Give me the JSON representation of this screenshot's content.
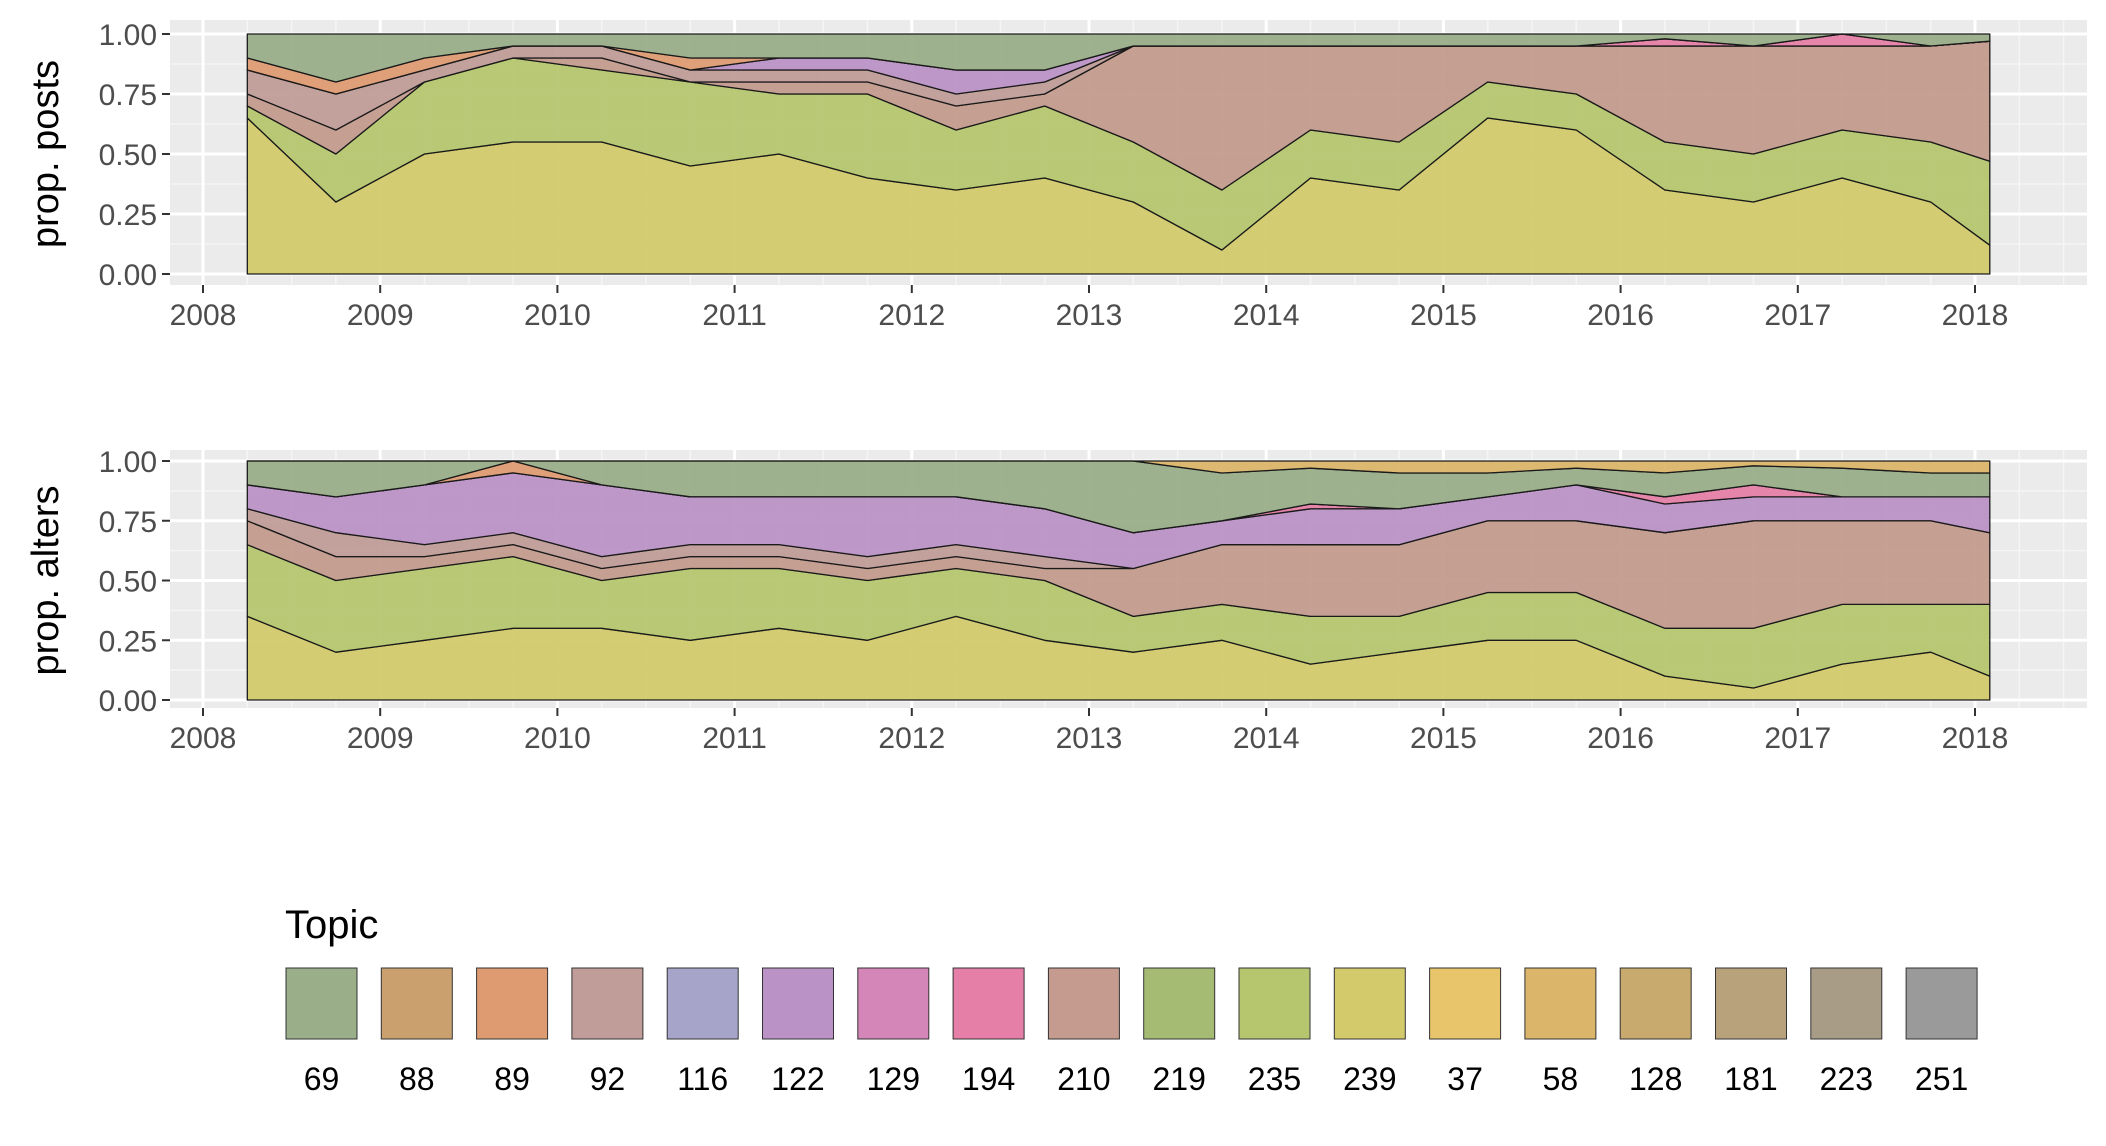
{
  "chart_data": [
    {
      "type": "area",
      "stacked": true,
      "ylabel": "prop. posts",
      "xlim": [
        "2008-01",
        "2018-06"
      ],
      "ylim": [
        0,
        1
      ],
      "x_ticks": [
        "2008",
        "2009",
        "2010",
        "2011",
        "2012",
        "2013",
        "2014",
        "2015",
        "2016",
        "2017",
        "2018"
      ],
      "y_ticks": [
        "0.00",
        "0.25",
        "0.50",
        "0.75",
        "1.00"
      ],
      "x": [
        "2008-04",
        "2008-10",
        "2009-04",
        "2009-10",
        "2010-04",
        "2010-10",
        "2011-04",
        "2011-10",
        "2012-04",
        "2012-10",
        "2013-04",
        "2013-10",
        "2014-04",
        "2014-10",
        "2015-04",
        "2015-10",
        "2016-04",
        "2016-10",
        "2017-04",
        "2017-10",
        "2018-02"
      ],
      "series": [
        {
          "topic": "239",
          "values": [
            0.65,
            0.3,
            0.5,
            0.55,
            0.55,
            0.45,
            0.5,
            0.4,
            0.35,
            0.4,
            0.3,
            0.1,
            0.4,
            0.35,
            0.65,
            0.6,
            0.35,
            0.3,
            0.4,
            0.3,
            0.12
          ]
        },
        {
          "topic": "235",
          "values": [
            0.05,
            0.2,
            0.3,
            0.35,
            0.3,
            0.35,
            0.25,
            0.35,
            0.25,
            0.3,
            0.25,
            0.25,
            0.2,
            0.2,
            0.15,
            0.15,
            0.2,
            0.2,
            0.2,
            0.25,
            0.35
          ]
        },
        {
          "topic": "210",
          "values": [
            0.05,
            0.1,
            0.0,
            0.0,
            0.05,
            0.0,
            0.05,
            0.05,
            0.1,
            0.05,
            0.4,
            0.6,
            0.35,
            0.4,
            0.15,
            0.2,
            0.4,
            0.45,
            0.35,
            0.4,
            0.5
          ]
        },
        {
          "topic": "92",
          "values": [
            0.1,
            0.15,
            0.05,
            0.05,
            0.05,
            0.05,
            0.05,
            0.05,
            0.05,
            0.05,
            0.0,
            0.0,
            0.0,
            0.0,
            0.0,
            0.0,
            0.0,
            0.0,
            0.0,
            0.0,
            0.0
          ]
        },
        {
          "topic": "122",
          "values": [
            0.0,
            0.0,
            0.0,
            0.0,
            0.0,
            0.0,
            0.05,
            0.05,
            0.1,
            0.05,
            0.0,
            0.0,
            0.0,
            0.0,
            0.0,
            0.0,
            0.0,
            0.0,
            0.0,
            0.0,
            0.0
          ]
        },
        {
          "topic": "194",
          "values": [
            0.0,
            0.0,
            0.0,
            0.0,
            0.0,
            0.0,
            0.0,
            0.0,
            0.0,
            0.0,
            0.0,
            0.0,
            0.0,
            0.0,
            0.0,
            0.0,
            0.03,
            0.0,
            0.05,
            0.0,
            0.0
          ]
        },
        {
          "topic": "89",
          "values": [
            0.05,
            0.05,
            0.05,
            0.0,
            0.0,
            0.05,
            0.0,
            0.0,
            0.0,
            0.0,
            0.0,
            0.0,
            0.0,
            0.0,
            0.0,
            0.0,
            0.0,
            0.0,
            0.0,
            0.0,
            0.0
          ]
        },
        {
          "topic": "69",
          "values": [
            0.1,
            0.2,
            0.1,
            0.05,
            0.05,
            0.1,
            0.1,
            0.1,
            0.15,
            0.15,
            0.05,
            0.05,
            0.05,
            0.05,
            0.05,
            0.05,
            0.02,
            0.05,
            0.0,
            0.05,
            0.03
          ]
        }
      ]
    },
    {
      "type": "area",
      "stacked": true,
      "ylabel": "prop. alters",
      "xlim": [
        "2008-01",
        "2018-06"
      ],
      "ylim": [
        0,
        1
      ],
      "x_ticks": [
        "2008",
        "2009",
        "2010",
        "2011",
        "2012",
        "2013",
        "2014",
        "2015",
        "2016",
        "2017",
        "2018"
      ],
      "y_ticks": [
        "0.00",
        "0.25",
        "0.50",
        "0.75",
        "1.00"
      ],
      "x": [
        "2008-04",
        "2008-10",
        "2009-04",
        "2009-10",
        "2010-04",
        "2010-10",
        "2011-04",
        "2011-10",
        "2012-04",
        "2012-10",
        "2013-04",
        "2013-10",
        "2014-04",
        "2014-10",
        "2015-04",
        "2015-10",
        "2016-04",
        "2016-10",
        "2017-04",
        "2017-10",
        "2018-02"
      ],
      "series": [
        {
          "topic": "239",
          "values": [
            0.35,
            0.2,
            0.25,
            0.3,
            0.3,
            0.25,
            0.3,
            0.25,
            0.35,
            0.25,
            0.2,
            0.25,
            0.15,
            0.2,
            0.25,
            0.25,
            0.1,
            0.05,
            0.15,
            0.2,
            0.1
          ]
        },
        {
          "topic": "235",
          "values": [
            0.3,
            0.3,
            0.3,
            0.3,
            0.2,
            0.3,
            0.25,
            0.25,
            0.2,
            0.25,
            0.15,
            0.15,
            0.2,
            0.15,
            0.2,
            0.2,
            0.2,
            0.25,
            0.25,
            0.2,
            0.3
          ]
        },
        {
          "topic": "210",
          "values": [
            0.1,
            0.1,
            0.05,
            0.05,
            0.05,
            0.05,
            0.05,
            0.05,
            0.05,
            0.05,
            0.2,
            0.25,
            0.3,
            0.3,
            0.3,
            0.3,
            0.4,
            0.45,
            0.35,
            0.35,
            0.3
          ]
        },
        {
          "topic": "92",
          "values": [
            0.05,
            0.1,
            0.05,
            0.05,
            0.05,
            0.05,
            0.05,
            0.05,
            0.05,
            0.05,
            0.0,
            0.0,
            0.0,
            0.0,
            0.0,
            0.0,
            0.0,
            0.0,
            0.0,
            0.0,
            0.0
          ]
        },
        {
          "topic": "122",
          "values": [
            0.1,
            0.15,
            0.25,
            0.25,
            0.3,
            0.2,
            0.2,
            0.25,
            0.2,
            0.2,
            0.15,
            0.1,
            0.15,
            0.15,
            0.1,
            0.15,
            0.12,
            0.1,
            0.1,
            0.1,
            0.15
          ]
        },
        {
          "topic": "194",
          "values": [
            0.0,
            0.0,
            0.0,
            0.0,
            0.0,
            0.0,
            0.0,
            0.0,
            0.0,
            0.0,
            0.0,
            0.0,
            0.02,
            0.0,
            0.0,
            0.0,
            0.03,
            0.05,
            0.0,
            0.0,
            0.0
          ]
        },
        {
          "topic": "89",
          "values": [
            0.0,
            0.0,
            0.0,
            0.05,
            0.0,
            0.0,
            0.0,
            0.0,
            0.0,
            0.0,
            0.0,
            0.0,
            0.0,
            0.0,
            0.0,
            0.0,
            0.0,
            0.0,
            0.0,
            0.0,
            0.0
          ]
        },
        {
          "topic": "69",
          "values": [
            0.1,
            0.15,
            0.1,
            0.0,
            0.1,
            0.15,
            0.15,
            0.15,
            0.15,
            0.2,
            0.3,
            0.2,
            0.15,
            0.15,
            0.1,
            0.07,
            0.1,
            0.08,
            0.12,
            0.1,
            0.1
          ]
        },
        {
          "topic": "58",
          "values": [
            0.0,
            0.0,
            0.0,
            0.0,
            0.0,
            0.0,
            0.0,
            0.0,
            0.0,
            0.0,
            0.0,
            0.05,
            0.03,
            0.05,
            0.05,
            0.03,
            0.05,
            0.02,
            0.03,
            0.05,
            0.05
          ]
        }
      ]
    }
  ],
  "legend": {
    "title": "Topic",
    "items": [
      {
        "label": "69",
        "color": "#9aae89"
      },
      {
        "label": "88",
        "color": "#c9a06e"
      },
      {
        "label": "89",
        "color": "#de9b72"
      },
      {
        "label": "92",
        "color": "#c09d98"
      },
      {
        "label": "116",
        "color": "#a6a4c8"
      },
      {
        "label": "122",
        "color": "#bb92c5"
      },
      {
        "label": "129",
        "color": "#d586b8"
      },
      {
        "label": "194",
        "color": "#e57fa7"
      },
      {
        "label": "210",
        "color": "#c49b8e"
      },
      {
        "label": "219",
        "color": "#a5bb73"
      },
      {
        "label": "235",
        "color": "#b5c66f"
      },
      {
        "label": "239",
        "color": "#d3ca6b"
      },
      {
        "label": "37",
        "color": "#e8c46a"
      },
      {
        "label": "58",
        "color": "#dbb56a"
      },
      {
        "label": "128",
        "color": "#c8a96e"
      },
      {
        "label": "181",
        "color": "#b8a27c"
      },
      {
        "label": "223",
        "color": "#a99c87"
      },
      {
        "label": "251",
        "color": "#9a9a9a"
      }
    ]
  }
}
